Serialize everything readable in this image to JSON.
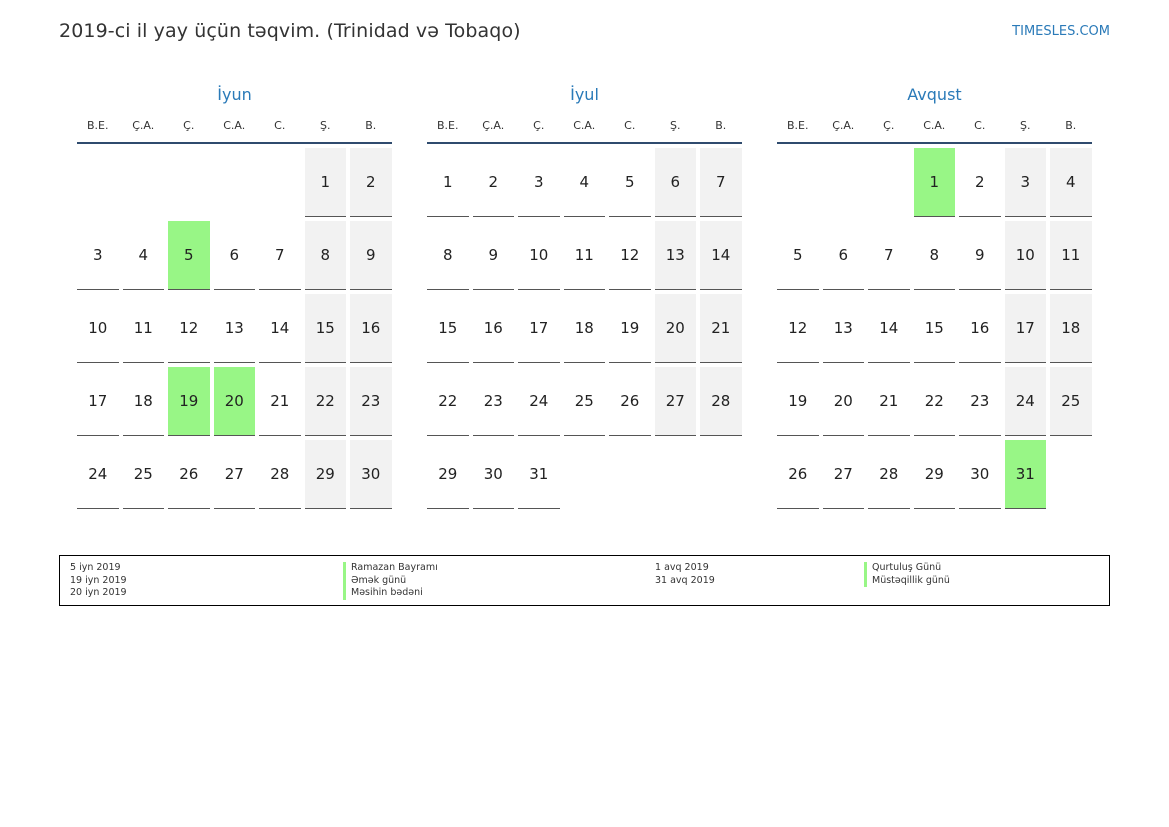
{
  "header": {
    "title": "2019-ci il yay üçün təqvim. (Trinidad və Tobaqo)",
    "brand": "TIMESLES.COM"
  },
  "weekdays": [
    "B.E.",
    "Ç.A.",
    "Ç.",
    "C.A.",
    "C.",
    "Ş.",
    "B."
  ],
  "months": [
    {
      "name": "İyun",
      "weeks": [
        [
          "",
          "",
          "",
          "",
          "",
          "1",
          "2"
        ],
        [
          "3",
          "4",
          "5",
          "6",
          "7",
          "8",
          "9"
        ],
        [
          "10",
          "11",
          "12",
          "13",
          "14",
          "15",
          "16"
        ],
        [
          "17",
          "18",
          "19",
          "20",
          "21",
          "22",
          "23"
        ],
        [
          "24",
          "25",
          "26",
          "27",
          "28",
          "29",
          "30"
        ]
      ],
      "holidays": [
        "5",
        "19",
        "20"
      ]
    },
    {
      "name": "İyul",
      "weeks": [
        [
          "1",
          "2",
          "3",
          "4",
          "5",
          "6",
          "7"
        ],
        [
          "8",
          "9",
          "10",
          "11",
          "12",
          "13",
          "14"
        ],
        [
          "15",
          "16",
          "17",
          "18",
          "19",
          "20",
          "21"
        ],
        [
          "22",
          "23",
          "24",
          "25",
          "26",
          "27",
          "28"
        ],
        [
          "29",
          "30",
          "31",
          "",
          "",
          "",
          ""
        ]
      ],
      "holidays": []
    },
    {
      "name": "Avqust",
      "weeks": [
        [
          "",
          "",
          "",
          "1",
          "2",
          "3",
          "4"
        ],
        [
          "5",
          "6",
          "7",
          "8",
          "9",
          "10",
          "11"
        ],
        [
          "12",
          "13",
          "14",
          "15",
          "16",
          "17",
          "18"
        ],
        [
          "19",
          "20",
          "21",
          "22",
          "23",
          "24",
          "25"
        ],
        [
          "26",
          "27",
          "28",
          "29",
          "30",
          "31",
          ""
        ]
      ],
      "holidays": [
        "1",
        "31"
      ]
    }
  ],
  "legend": {
    "left_dates": [
      "5 iyn 2019",
      "19 iyn 2019",
      "20 iyn 2019"
    ],
    "left_names": [
      "Ramazan Bayramı",
      "Əmək günü",
      "Məsihin bədəni"
    ],
    "right_dates": [
      "1 avq 2019",
      "31 avq 2019"
    ],
    "right_names": [
      "Qurtuluş Günü",
      "Müstəqillik günü"
    ]
  },
  "colors": {
    "holiday": "#98f686",
    "weekend": "#f2f2f2",
    "accent": "#2a7ab8",
    "rule": "#2f4b6e"
  }
}
